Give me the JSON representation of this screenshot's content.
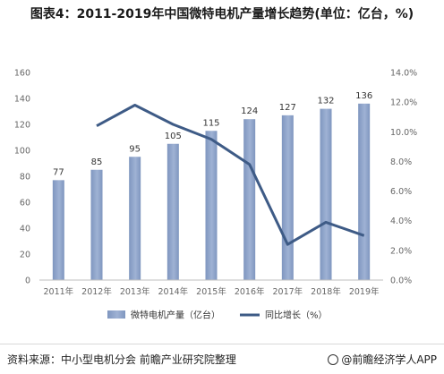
{
  "title": "图表4：2011-2019年中国微特电机产量增长趋势(单位：亿台，%)",
  "chart_data": {
    "type": "bar",
    "categories": [
      "2011年",
      "2012年",
      "2013年",
      "2014年",
      "2015年",
      "2016年",
      "2017年",
      "2018年",
      "2019年"
    ],
    "series": [
      {
        "name": "微特电机产量（亿台）",
        "type": "bar",
        "axis": "left",
        "values": [
          77,
          85,
          95,
          105,
          115,
          124,
          127,
          132,
          136
        ]
      },
      {
        "name": "同比增长（%）",
        "type": "line",
        "axis": "right",
        "values": [
          null,
          10.4,
          11.8,
          10.5,
          9.5,
          7.8,
          2.4,
          3.9,
          3.0
        ]
      }
    ],
    "yleft": {
      "min": 0,
      "max": 160,
      "ticks": [
        "0",
        "20",
        "40",
        "60",
        "80",
        "100",
        "120",
        "140",
        "160"
      ]
    },
    "yright": {
      "min": 0,
      "max": 14,
      "ticks": [
        "0.0%",
        "2.0%",
        "4.0%",
        "6.0%",
        "8.0%",
        "10.0%",
        "12.0%",
        "14.0%"
      ]
    },
    "grid": false,
    "legend_position": "bottom",
    "colors": {
      "bar": "#7f96bf",
      "bar_light": "#9fb2d4",
      "line": "#3e5b86",
      "axis_text": "#666666"
    }
  },
  "footer": {
    "source": "资料来源：中小型电机分会 前瞻产业研究院整理",
    "brand": "@前瞻经济学人APP"
  }
}
